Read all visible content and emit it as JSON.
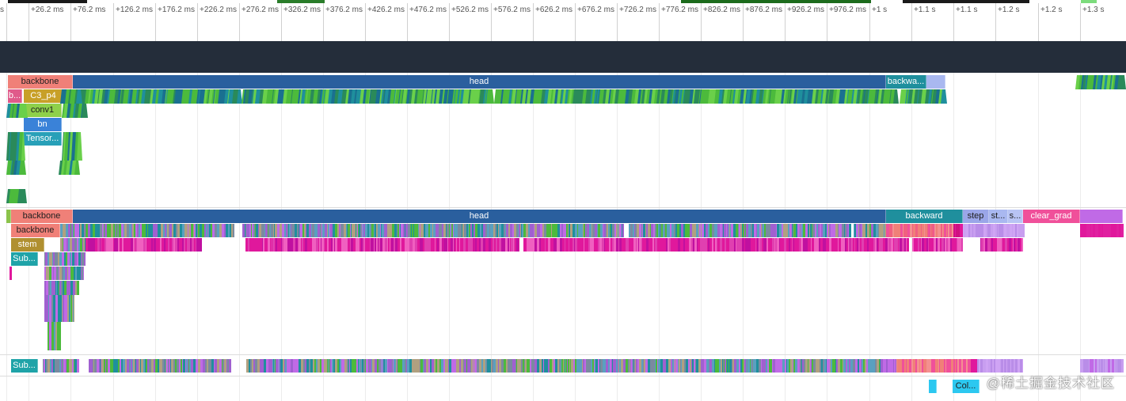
{
  "timeline": {
    "tick_labels": [
      "s",
      "+26.2 ms",
      "+76.2 ms",
      "+126.2 ms",
      "+176.2 ms",
      "+226.2 ms",
      "+276.2 ms",
      "+326.2 ms",
      "+376.2 ms",
      "+426.2 ms",
      "+476.2 ms",
      "+526.2 ms",
      "+576.2 ms",
      "+626.2 ms",
      "+676.2 ms",
      "+726.2 ms",
      "+776.2 ms",
      "+826.2 ms",
      "+876.2 ms",
      "+926.2 ms",
      "+976.2 ms",
      "+1 s",
      "+1.1 s",
      "+1.1 s",
      "+1.2 s",
      "+1.2 s",
      "+1.3 s"
    ]
  },
  "track_cpu": {
    "slices": {
      "backbone": "backbone",
      "head": "head",
      "backward": "backwa...",
      "b": "b...",
      "c3": "C3_p4",
      "conv1": "conv1",
      "bn": "bn",
      "tensor": "Tensor..."
    }
  },
  "track_gpu": {
    "slices": {
      "backbone": "backbone",
      "head": "head",
      "backward": "backward",
      "step": "step",
      "st": "st...",
      "s": "s...",
      "clear_grad": "clear_grad",
      "backbone2": "backbone",
      "stem": "stem",
      "sub": "Sub..."
    }
  },
  "track_kernels": {
    "sub": "Sub...",
    "col": "Col..."
  },
  "colors": {
    "backbone": "#f08078",
    "head": "#2a5f9e",
    "teal": "#1f8f9d",
    "green": "#4cba3c",
    "purple": "#c06ae6",
    "magenta": "#e0189c",
    "pink": "#f0509a"
  },
  "watermark": "@稀土掘金技术社区"
}
